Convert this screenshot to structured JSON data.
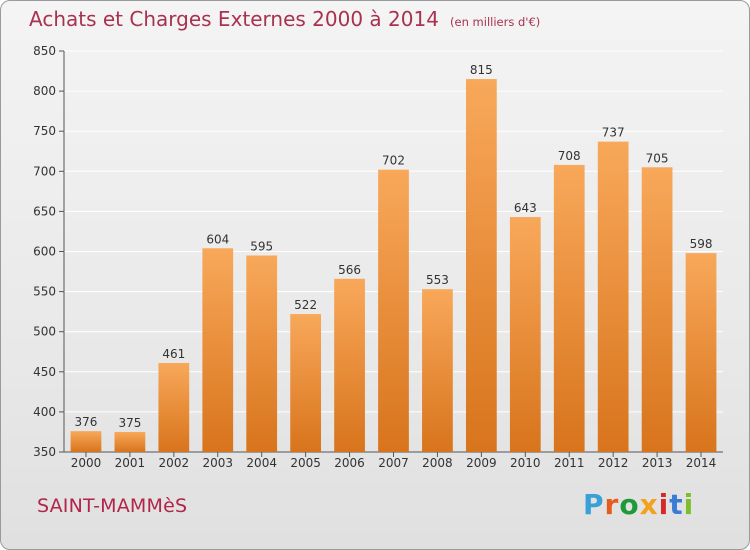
{
  "header": {
    "title": "Achats et Charges Externes 2000 à 2014",
    "subtitle": "(en milliers d'€)"
  },
  "footer": {
    "commune": "SAINT-MAMMèS",
    "logo_text": "Proxiti",
    "logo_colors": [
      "#3aa0d8",
      "#e85b1e",
      "#1f9a3a",
      "#f2a21c",
      "#d42a2a",
      "#3a7bd5",
      "#7cbf2a"
    ]
  },
  "chart_data": {
    "type": "bar",
    "categories": [
      "2000",
      "2001",
      "2002",
      "2003",
      "2004",
      "2005",
      "2006",
      "2007",
      "2008",
      "2009",
      "2010",
      "2011",
      "2012",
      "2013",
      "2014"
    ],
    "values": [
      376,
      375,
      461,
      604,
      595,
      522,
      566,
      702,
      553,
      815,
      643,
      708,
      737,
      705,
      598
    ],
    "ylim": [
      350,
      850
    ],
    "yticks": [
      350,
      400,
      450,
      500,
      550,
      600,
      650,
      700,
      750,
      800,
      850
    ],
    "grid": true,
    "bar_color_light": "#f8a85a",
    "bar_color_dark": "#d8741c",
    "grid_color": "#ffffff"
  }
}
